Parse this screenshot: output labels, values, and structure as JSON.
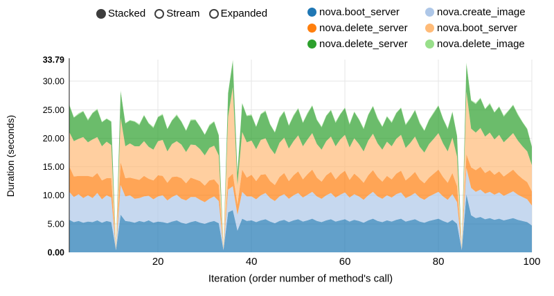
{
  "controls": {
    "options": [
      {
        "label": "Stacked",
        "selected": true
      },
      {
        "label": "Stream",
        "selected": false
      },
      {
        "label": "Expanded",
        "selected": false
      }
    ]
  },
  "legend": {
    "items": [
      {
        "label": "nova.boot_server",
        "color": "#1f77b4"
      },
      {
        "label": "nova.create_image",
        "color": "#aec7e8"
      },
      {
        "label": "nova.delete_server",
        "color": "#ff7f0e"
      },
      {
        "label": "nova.boot_server",
        "color": "#ffbb78"
      },
      {
        "label": "nova.delete_server",
        "color": "#2ca02c"
      },
      {
        "label": "nova.delete_image",
        "color": "#98df8a"
      }
    ]
  },
  "chart_data": {
    "type": "area",
    "stacked": true,
    "mode": "Stacked",
    "title": "",
    "xlabel": "Iteration (order number of method's call)",
    "ylabel": "Duration (seconds)",
    "xlim": [
      1,
      100
    ],
    "ylim": [
      0,
      33.79
    ],
    "grid": true,
    "legend_position": "top-right",
    "fill_opacity": 0.7,
    "xticks": [
      {
        "v": 20,
        "label": "20"
      },
      {
        "v": 40,
        "label": "40"
      },
      {
        "v": 60,
        "label": "60"
      },
      {
        "v": 80,
        "label": "80"
      },
      {
        "v": 100,
        "label": "100"
      }
    ],
    "yticks": [
      {
        "v": 0,
        "label": "0.00",
        "bold": true,
        "grid": false
      },
      {
        "v": 5,
        "label": "5.00",
        "bold": false,
        "grid": true
      },
      {
        "v": 10,
        "label": "10.00",
        "bold": false,
        "grid": true
      },
      {
        "v": 15,
        "label": "15.00",
        "bold": false,
        "grid": true
      },
      {
        "v": 20,
        "label": "20.00",
        "bold": false,
        "grid": true
      },
      {
        "v": 25,
        "label": "25.00",
        "bold": false,
        "grid": true
      },
      {
        "v": 30,
        "label": "30.00",
        "bold": false,
        "grid": true
      },
      {
        "v": 33.79,
        "label": "33.79",
        "bold": true,
        "grid": false
      }
    ],
    "series": [
      {
        "name": "nova.boot_server",
        "color": "#1f77b4",
        "values": [
          5.7,
          5.3,
          5.5,
          5.2,
          5.4,
          5.3,
          5.6,
          5.2,
          5.5,
          5.3,
          0.4,
          6.6,
          5.5,
          5.4,
          5.2,
          5.5,
          5.3,
          5.6,
          5.2,
          5.4,
          5.3,
          5.1,
          5.4,
          5.6,
          5.2,
          5.0,
          5.3,
          5.5,
          5.2,
          5.0,
          5.3,
          5.5,
          5.1,
          0.4,
          7.0,
          7.4,
          3.8,
          5.9,
          5.5,
          5.6,
          5.3,
          5.6,
          5.8,
          5.4,
          5.1,
          5.5,
          5.7,
          5.3,
          5.6,
          5.8,
          5.4,
          5.6,
          5.9,
          5.5,
          5.3,
          5.6,
          5.8,
          5.4,
          5.6,
          5.8,
          5.4,
          5.7,
          5.5,
          5.2,
          5.6,
          5.9,
          5.5,
          5.3,
          5.6,
          5.4,
          5.7,
          5.9,
          5.4,
          5.6,
          5.8,
          5.4,
          5.2,
          5.5,
          5.7,
          5.9,
          5.5,
          5.2,
          5.7,
          5.0,
          0.4,
          10.2,
          6.5,
          6.0,
          6.2,
          5.8,
          6.0,
          5.7,
          5.9,
          5.6,
          5.8,
          6.0,
          5.7,
          5.5,
          5.3,
          4.7
        ]
      },
      {
        "name": "nova.create_image",
        "color": "#aec7e8",
        "values": [
          4.9,
          4.4,
          4.7,
          4.3,
          4.6,
          4.2,
          4.8,
          4.1,
          4.5,
          4.3,
          0.1,
          5.2,
          4.3,
          4.6,
          4.2,
          4.0,
          4.5,
          4.3,
          4.1,
          4.4,
          4.7,
          4.0,
          4.3,
          4.5,
          4.2,
          4.1,
          4.4,
          4.2,
          4.0,
          3.8,
          4.1,
          4.3,
          3.9,
          0.1,
          4.0,
          4.2,
          2.8,
          4.7,
          4.3,
          4.2,
          4.0,
          4.4,
          4.6,
          4.1,
          3.9,
          4.3,
          4.5,
          4.1,
          4.4,
          4.6,
          4.2,
          4.5,
          4.7,
          4.3,
          4.1,
          4.4,
          4.6,
          4.2,
          4.5,
          4.7,
          4.2,
          4.5,
          4.3,
          4.0,
          4.4,
          4.7,
          4.3,
          4.1,
          4.4,
          4.2,
          4.5,
          4.6,
          4.1,
          4.3,
          4.6,
          4.2,
          4.0,
          4.3,
          4.5,
          4.7,
          4.3,
          4.0,
          4.5,
          3.8,
          0.1,
          4.6,
          4.8,
          4.6,
          4.8,
          4.5,
          4.6,
          4.4,
          4.6,
          4.3,
          4.5,
          4.7,
          4.4,
          4.2,
          4.0,
          3.5
        ]
      },
      {
        "name": "nova.delete_server",
        "color": "#ff7f0e",
        "values": [
          4.5,
          3.6,
          3.2,
          3.9,
          3.4,
          3.7,
          3.5,
          3.3,
          3.0,
          3.4,
          0.1,
          4.0,
          3.2,
          3.1,
          3.5,
          3.2,
          3.6,
          3.0,
          3.3,
          3.7,
          3.4,
          3.1,
          3.5,
          3.2,
          3.6,
          3.0,
          3.4,
          3.1,
          3.3,
          2.9,
          3.2,
          3.0,
          2.8,
          0.1,
          2.0,
          2.2,
          1.8,
          3.9,
          3.3,
          3.8,
          3.2,
          3.6,
          3.3,
          3.0,
          2.8,
          3.4,
          3.7,
          3.1,
          3.5,
          3.8,
          3.2,
          3.6,
          3.9,
          3.3,
          3.0,
          3.5,
          3.7,
          3.2,
          3.6,
          3.8,
          3.1,
          3.6,
          3.3,
          3.0,
          3.5,
          3.8,
          3.4,
          3.0,
          3.4,
          3.2,
          3.6,
          3.8,
          3.1,
          3.4,
          3.7,
          3.2,
          2.9,
          3.3,
          3.6,
          3.9,
          3.4,
          3.0,
          3.7,
          2.8,
          0.1,
          2.4,
          3.6,
          3.8,
          4.0,
          3.6,
          3.8,
          3.5,
          3.7,
          3.4,
          3.6,
          3.8,
          3.5,
          3.2,
          3.0,
          2.5
        ]
      },
      {
        "name": "nova.boot_server",
        "color": "#ffbb78",
        "values": [
          6.0,
          6.2,
          6.5,
          6.8,
          5.9,
          6.6,
          6.3,
          6.0,
          6.4,
          5.8,
          0.1,
          7.8,
          5.6,
          6.0,
          5.7,
          5.9,
          6.1,
          5.6,
          5.4,
          6.0,
          6.3,
          5.5,
          5.8,
          6.2,
          5.9,
          5.5,
          5.8,
          6.0,
          5.6,
          5.3,
          5.7,
          5.9,
          5.2,
          0.1,
          10.8,
          15.2,
          3.4,
          6.6,
          6.2,
          6.0,
          5.6,
          6.1,
          6.3,
          5.8,
          5.4,
          6.0,
          6.2,
          5.7,
          6.0,
          6.3,
          5.8,
          6.1,
          6.4,
          5.9,
          5.6,
          6.0,
          6.2,
          5.8,
          6.1,
          6.3,
          5.7,
          6.2,
          5.9,
          5.5,
          6.1,
          6.4,
          5.9,
          5.6,
          6.0,
          5.8,
          6.1,
          6.3,
          5.7,
          5.9,
          6.2,
          5.7,
          5.4,
          5.9,
          6.1,
          6.4,
          5.9,
          5.5,
          6.2,
          5.2,
          0.1,
          11.0,
          6.8,
          6.6,
          6.8,
          6.4,
          6.6,
          6.2,
          6.4,
          6.0,
          6.2,
          6.4,
          6.0,
          5.7,
          5.4,
          4.6
        ]
      },
      {
        "name": "nova.delete_server",
        "color": "#2ca02c",
        "values": [
          4.7,
          4.1,
          4.3,
          4.5,
          3.8,
          4.6,
          4.8,
          4.2,
          4.0,
          4.1,
          0.1,
          4.6,
          4.0,
          4.0,
          4.3,
          3.7,
          4.5,
          4.1,
          3.8,
          4.2,
          4.4,
          3.9,
          4.1,
          4.5,
          4.0,
          3.7,
          4.2,
          4.4,
          3.9,
          3.6,
          3.9,
          4.2,
          3.5,
          0.1,
          4.1,
          4.59,
          2.1,
          5.0,
          4.6,
          4.4,
          3.9,
          4.5,
          4.7,
          4.1,
          3.8,
          4.3,
          4.6,
          4.0,
          4.4,
          4.7,
          4.1,
          4.5,
          4.8,
          4.2,
          3.9,
          4.4,
          4.6,
          4.1,
          4.4,
          4.7,
          4.0,
          4.6,
          4.3,
          3.9,
          4.5,
          4.8,
          4.3,
          4.0,
          4.4,
          4.1,
          4.5,
          4.7,
          4.0,
          4.3,
          4.6,
          4.1,
          3.8,
          4.2,
          4.5,
          4.8,
          4.3,
          3.9,
          4.5,
          3.6,
          0.1,
          4.9,
          4.9,
          5.0,
          5.2,
          4.8,
          5.0,
          4.7,
          4.9,
          4.5,
          4.7,
          4.9,
          4.5,
          4.2,
          3.9,
          3.2
        ]
      },
      {
        "name": "nova.delete_image",
        "color": "#98df8a",
        "values": [
          0.2,
          0.1,
          0.2,
          0.1,
          0.2,
          0.1,
          0.2,
          0.1,
          0.1,
          0.1,
          0.02,
          0.2,
          0.1,
          0.1,
          0.1,
          0.2,
          0.1,
          0.1,
          0.2,
          0.1,
          0.2,
          0.1,
          0.1,
          0.2,
          0.1,
          0.1,
          0.2,
          0.1,
          0.1,
          0.1,
          0.2,
          0.1,
          0.1,
          0.02,
          0.1,
          0.2,
          0.1,
          0.1,
          0.1,
          0.2,
          0.1,
          0.1,
          0.2,
          0.1,
          0.1,
          0.2,
          0.1,
          0.1,
          0.2,
          0.1,
          0.1,
          0.2,
          0.1,
          0.1,
          0.2,
          0.1,
          0.1,
          0.2,
          0.1,
          0.1,
          0.2,
          0.1,
          0.1,
          0.2,
          0.1,
          0.1,
          0.2,
          0.1,
          0.1,
          0.2,
          0.1,
          0.1,
          0.2,
          0.1,
          0.1,
          0.2,
          0.1,
          0.1,
          0.2,
          0.1,
          0.1,
          0.2,
          0.1,
          0.1,
          0.02,
          0.2,
          0.1,
          0.2,
          0.1,
          0.1,
          0.2,
          0.1,
          0.1,
          0.2,
          0.1,
          0.1,
          0.2,
          0.1,
          0.1,
          0.1
        ]
      }
    ]
  }
}
